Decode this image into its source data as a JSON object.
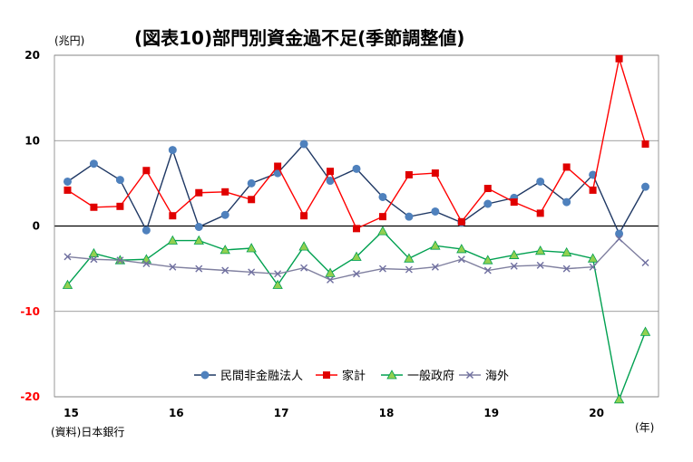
{
  "chart_data": {
    "type": "line",
    "title": "(図表10)部門別資金過不足(季節調整値)",
    "y_unit_label": "(兆円)",
    "x_unit_label": "(年)",
    "source": "(資料)日本銀行",
    "ylim": [
      -20,
      20
    ],
    "y_ticks": [
      "20",
      "10",
      "0",
      "-10",
      "-20"
    ],
    "y_tick_values": [
      20,
      10,
      0,
      -10,
      -20
    ],
    "x_tick_labels": [
      "15",
      "16",
      "17",
      "18",
      "19",
      "20"
    ],
    "x_tick_quarter_index": [
      0,
      4,
      8,
      12,
      16,
      20
    ],
    "x_count": 23,
    "grid": true,
    "legend_position": "bottom-center",
    "series": [
      {
        "name": "民間非金融法人",
        "color": "#1f3864",
        "marker": "circle",
        "marker_color": "#4f81bd",
        "values": [
          5.2,
          7.3,
          5.4,
          -0.5,
          8.9,
          -0.1,
          1.3,
          5.0,
          6.2,
          9.6,
          5.3,
          6.7,
          3.4,
          1.1,
          1.7,
          0.4,
          2.6,
          3.3,
          5.2,
          2.8,
          6.0,
          -0.9,
          4.6
        ]
      },
      {
        "name": "家計",
        "color": "#ff0000",
        "marker": "square",
        "marker_color": "#e00000",
        "values": [
          4.2,
          2.2,
          2.3,
          6.5,
          1.2,
          3.9,
          4.0,
          3.1,
          7.0,
          1.2,
          6.4,
          -0.3,
          1.1,
          6.0,
          6.2,
          0.5,
          4.4,
          2.8,
          1.5,
          6.9,
          4.2,
          19.6,
          9.6
        ]
      },
      {
        "name": "一般政府",
        "color": "#00a050",
        "marker": "triangle",
        "marker_color": "#92d050",
        "values": [
          -6.9,
          -3.2,
          -4.0,
          -3.9,
          -1.7,
          -1.7,
          -2.8,
          -2.6,
          -6.9,
          -2.4,
          -5.5,
          -3.6,
          -0.6,
          -3.8,
          -2.3,
          -2.7,
          -4.0,
          -3.4,
          -2.9,
          -3.1,
          -3.8,
          -20.3,
          -12.4
        ]
      },
      {
        "name": "海外",
        "color": "#7f7f9f",
        "marker": "x",
        "marker_color": "#6f6fa0",
        "values": [
          -3.6,
          -3.9,
          -4.0,
          -4.4,
          -4.8,
          -5.0,
          -5.2,
          -5.4,
          -5.6,
          -4.9,
          -6.3,
          -5.6,
          -5.0,
          -5.1,
          -4.8,
          -3.9,
          -5.2,
          -4.7,
          -4.6,
          -5.0,
          -4.8,
          -1.5,
          -4.3
        ]
      }
    ]
  }
}
